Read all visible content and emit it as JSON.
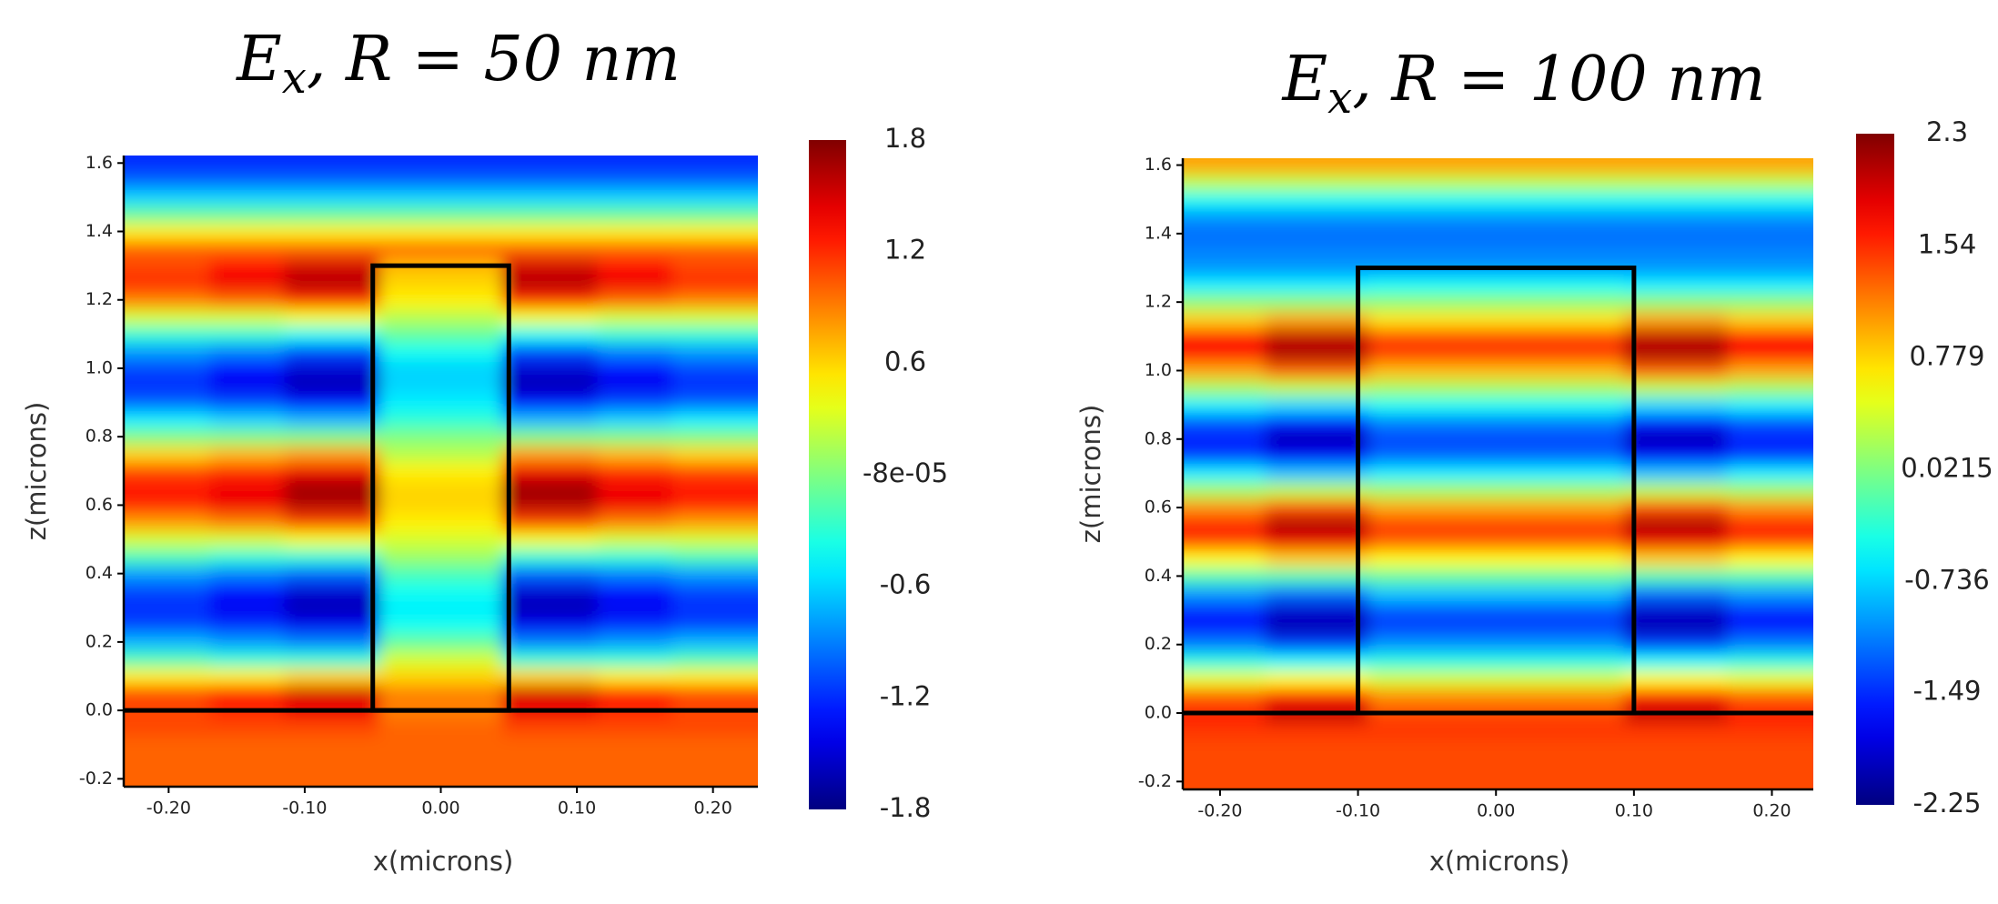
{
  "chart_data": [
    {
      "type": "heatmap",
      "title_main": "E",
      "title_sub": "x",
      "title_rest": ", R = 50 nm",
      "xlabel": "x(microns)",
      "ylabel": "z(microns)",
      "colormap": "jet",
      "x": [
        -0.2,
        -0.14,
        -0.09,
        0,
        0.09,
        0.14,
        0.2
      ],
      "y": [
        -0.2,
        -0.15,
        -0.1,
        -0.05,
        0,
        0.05,
        0.1,
        0.15,
        0.2,
        0.25,
        0.3,
        0.35,
        0.4,
        0.45,
        0.5,
        0.55,
        0.6,
        0.65,
        0.7,
        0.75,
        0.8,
        0.85,
        0.9,
        0.95,
        1,
        1.05,
        1.1,
        1.15,
        1.2,
        1.25,
        1.3,
        1.35,
        1.4,
        1.45,
        1.5,
        1.55,
        1.6
      ],
      "values": [
        [
          1,
          1,
          1,
          1,
          1,
          1,
          1
        ],
        [
          1,
          1,
          1,
          1,
          1,
          1,
          1
        ],
        [
          1,
          1,
          1,
          1,
          1,
          1,
          1
        ],
        [
          1.1,
          1.1,
          1.1,
          1,
          1.1,
          1.1,
          1.1
        ],
        [
          1.1,
          1.2,
          1.4,
          0.9,
          1.4,
          1.2,
          1.1
        ],
        [
          1.1,
          1.3,
          1.5,
          0.9,
          1.5,
          1.3,
          1.1
        ],
        [
          0.5,
          0.5,
          0.6,
          0.6,
          0.6,
          0.5,
          0.5
        ],
        [
          -0.2,
          -0.3,
          -0.3,
          0.3,
          -0.3,
          -0.3,
          -0.2
        ],
        [
          -0.7,
          -0.8,
          -0.9,
          -0.1,
          -0.9,
          -0.8,
          -0.7
        ],
        [
          -1.1,
          -1.2,
          -1.4,
          -0.4,
          -1.4,
          -1.2,
          -1.1
        ],
        [
          -1.2,
          -1.4,
          -1.6,
          -0.5,
          -1.6,
          -1.4,
          -1.2
        ],
        [
          -1.1,
          -1.3,
          -1.5,
          -0.4,
          -1.5,
          -1.3,
          -1.1
        ],
        [
          -0.8,
          -0.9,
          -1,
          -0.2,
          -1,
          -0.9,
          -0.8
        ],
        [
          -0.2,
          -0.3,
          -0.3,
          0.1,
          -0.3,
          -0.3,
          -0.2
        ],
        [
          0.3,
          0.3,
          0.4,
          0.3,
          0.4,
          0.3,
          0.3
        ],
        [
          0.8,
          0.9,
          1.1,
          0.5,
          1.1,
          0.9,
          0.8
        ],
        [
          1.2,
          1.4,
          1.6,
          0.6,
          1.6,
          1.4,
          1.2
        ],
        [
          1.3,
          1.4,
          1.7,
          0.6,
          1.7,
          1.4,
          1.3
        ],
        [
          1.1,
          1.2,
          1.4,
          0.5,
          1.4,
          1.2,
          1.1
        ],
        [
          0.6,
          0.7,
          0.8,
          0.2,
          0.8,
          0.7,
          0.6
        ],
        [
          0,
          0,
          0,
          0,
          0,
          0,
          0
        ],
        [
          -0.5,
          -0.6,
          -0.7,
          -0.3,
          -0.7,
          -0.6,
          -0.5
        ],
        [
          -1,
          -1.1,
          -1.3,
          -0.5,
          -1.3,
          -1.1,
          -1
        ],
        [
          -1.2,
          -1.4,
          -1.6,
          -0.6,
          -1.6,
          -1.4,
          -1.2
        ],
        [
          -1.1,
          -1.3,
          -1.5,
          -0.6,
          -1.5,
          -1.3,
          -1.1
        ],
        [
          -0.8,
          -0.9,
          -1.1,
          -0.4,
          -1.1,
          -0.9,
          -0.8
        ],
        [
          -0.3,
          -0.3,
          -0.4,
          -0.1,
          -0.4,
          -0.3,
          -0.3
        ],
        [
          0.3,
          0.3,
          0.4,
          0.2,
          0.4,
          0.3,
          0.3
        ],
        [
          0.9,
          1,
          1.2,
          0.5,
          1.2,
          1,
          0.9
        ],
        [
          1.2,
          1.4,
          1.6,
          0.6,
          1.6,
          1.4,
          1.2
        ],
        [
          1.1,
          1.3,
          1.5,
          0.7,
          1.5,
          1.3,
          1.1
        ],
        [
          1,
          1,
          1,
          1,
          1,
          1,
          1
        ],
        [
          0.5,
          0.5,
          0.5,
          0.5,
          0.5,
          0.5,
          0.5
        ],
        [
          -0.1,
          -0.1,
          -0.1,
          -0.1,
          -0.1,
          -0.1,
          -0.1
        ],
        [
          -0.6,
          -0.6,
          -0.6,
          -0.6,
          -0.6,
          -0.6,
          -0.6
        ],
        [
          -1,
          -1,
          -1,
          -1,
          -1,
          -1,
          -1
        ],
        [
          -1.2,
          -1.2,
          -1.2,
          -1.2,
          -1.2,
          -1.2,
          -1.2
        ]
      ],
      "xlim": [
        -0.233,
        0.233
      ],
      "ylim": [
        -0.223,
        1.622
      ],
      "xticks": [
        {
          "value": -0.2,
          "label": "-0.20"
        },
        {
          "value": -0.1,
          "label": "-0.10"
        },
        {
          "value": 0,
          "label": "0.00"
        },
        {
          "value": 0.1,
          "label": "0.10"
        },
        {
          "value": 0.2,
          "label": "0.20"
        }
      ],
      "yticks": [
        -0.2,
        {
          "value": 0,
          "label": "0.0"
        },
        0.2,
        0.4,
        0.6,
        0.8,
        {
          "value": 1,
          "label": "1.0"
        },
        1.2,
        1.4,
        1.6
      ],
      "clim": [
        -1.8,
        1.8
      ],
      "cticks": [
        1.8,
        1.2,
        0.6,
        {
          "value": -8e-05,
          "label": "-8e-05"
        },
        -0.6,
        -1.2,
        -1.8
      ],
      "structure_x": [
        -0.05,
        0.05
      ],
      "structure_z": [
        0,
        1.3
      ]
    },
    {
      "type": "heatmap",
      "title_main": "E",
      "title_sub": "x",
      "title_rest": ", R = 100 nm",
      "xlabel": "x(microns)",
      "ylabel": "z(microns)",
      "colormap": "jet",
      "x": [
        -0.2,
        -0.135,
        -0.05,
        0.05,
        0.135,
        0.2
      ],
      "y": [
        -0.2,
        -0.15,
        -0.1,
        -0.05,
        0,
        0.05,
        0.1,
        0.15,
        0.2,
        0.25,
        0.3,
        0.35,
        0.4,
        0.45,
        0.5,
        0.55,
        0.6,
        0.65,
        0.7,
        0.75,
        0.8,
        0.85,
        0.9,
        0.95,
        1,
        1.05,
        1.1,
        1.15,
        1.2,
        1.25,
        1.3,
        1.35,
        1.4,
        1.45,
        1.5,
        1.55,
        1.6
      ],
      "values": [
        [
          1.4,
          1.4,
          1.4,
          1.4,
          1.4,
          1.4
        ],
        [
          1.4,
          1.4,
          1.4,
          1.4,
          1.4,
          1.4
        ],
        [
          1.4,
          1.4,
          1.4,
          1.4,
          1.4,
          1.4
        ],
        [
          1.5,
          1.5,
          1.5,
          1.5,
          1.5,
          1.5
        ],
        [
          1.6,
          2,
          1.4,
          1.4,
          2,
          1.6
        ],
        [
          1.3,
          1.6,
          1.1,
          1.1,
          1.6,
          1.3
        ],
        [
          0.5,
          0.6,
          0.4,
          0.4,
          0.6,
          0.5
        ],
        [
          -0.4,
          -0.5,
          -0.4,
          -0.4,
          -0.5,
          -0.4
        ],
        [
          -1.1,
          -1.4,
          -1,
          -1,
          -1.4,
          -1.1
        ],
        [
          -1.6,
          -2,
          -1.4,
          -1.4,
          -2,
          -1.6
        ],
        [
          -1.5,
          -1.9,
          -1.3,
          -1.3,
          -1.9,
          -1.5
        ],
        [
          -1,
          -1.2,
          -0.8,
          -0.8,
          -1.2,
          -1
        ],
        [
          -0.2,
          -0.2,
          -0.1,
          -0.1,
          -0.2,
          -0.2
        ],
        [
          0.6,
          0.8,
          0.6,
          0.6,
          0.8,
          0.6
        ],
        [
          1.4,
          1.8,
          1.3,
          1.3,
          1.8,
          1.4
        ],
        [
          1.7,
          2.1,
          1.5,
          1.5,
          2.1,
          1.7
        ],
        [
          1.1,
          1.4,
          1,
          1,
          1.4,
          1.1
        ],
        [
          0.2,
          0.3,
          0.2,
          0.2,
          0.3,
          0.2
        ],
        [
          -0.6,
          -0.8,
          -0.6,
          -0.6,
          -0.8,
          -0.6
        ],
        [
          -1.4,
          -1.7,
          -1.2,
          -1.2,
          -1.7,
          -1.4
        ],
        [
          -1.6,
          -2,
          -1.4,
          -1.4,
          -2,
          -1.6
        ],
        [
          -1.3,
          -1.6,
          -1.1,
          -1.1,
          -1.6,
          -1.3
        ],
        [
          -0.6,
          -0.7,
          -0.5,
          -0.5,
          -0.7,
          -0.6
        ],
        [
          0.2,
          0.3,
          0.2,
          0.2,
          0.3,
          0.2
        ],
        [
          1,
          1.3,
          0.9,
          0.9,
          1.3,
          1
        ],
        [
          1.7,
          2.1,
          1.5,
          1.5,
          2.1,
          1.7
        ],
        [
          1.6,
          2,
          1.4,
          1.4,
          2,
          1.6
        ],
        [
          0.8,
          1,
          0.7,
          0.7,
          1,
          0.8
        ],
        [
          0.1,
          0.1,
          0.1,
          0.1,
          0.1,
          0.1
        ],
        [
          -0.6,
          -0.6,
          -0.5,
          -0.5,
          -0.6,
          -0.6
        ],
        [
          -1,
          -1,
          -1,
          -1,
          -1,
          -1
        ],
        [
          -1.1,
          -1.1,
          -1.1,
          -1.1,
          -1.1,
          -1.1
        ],
        [
          -1.2,
          -1.2,
          -1.2,
          -1.2,
          -1.2,
          -1.2
        ],
        [
          -1,
          -1,
          -1,
          -1,
          -1,
          -1
        ],
        [
          -0.5,
          -0.5,
          -0.5,
          -0.5,
          -0.5,
          -0.5
        ],
        [
          0.3,
          0.3,
          0.3,
          0.3,
          0.3,
          0.3
        ],
        [
          1,
          1,
          1,
          1,
          1,
          1
        ]
      ],
      "xlim": [
        -0.227,
        0.23
      ],
      "ylim": [
        -0.223,
        1.62
      ],
      "xticks": [
        {
          "value": -0.2,
          "label": "-0.20"
        },
        {
          "value": -0.1,
          "label": "-0.10"
        },
        {
          "value": 0,
          "label": "0.00"
        },
        {
          "value": 0.1,
          "label": "0.10"
        },
        {
          "value": 0.2,
          "label": "0.20"
        }
      ],
      "yticks": [
        -0.2,
        {
          "value": 0,
          "label": "0.0"
        },
        0.2,
        0.4,
        0.6,
        0.8,
        {
          "value": 1,
          "label": "1.0"
        },
        1.2,
        1.4,
        1.6
      ],
      "clim": [
        -2.25,
        2.3
      ],
      "cticks": [
        2.3,
        1.54,
        0.779,
        0.0215,
        -0.736,
        -1.49,
        -2.25
      ],
      "structure_x": [
        -0.1,
        0.1
      ],
      "structure_z": [
        0,
        1.3
      ]
    }
  ]
}
